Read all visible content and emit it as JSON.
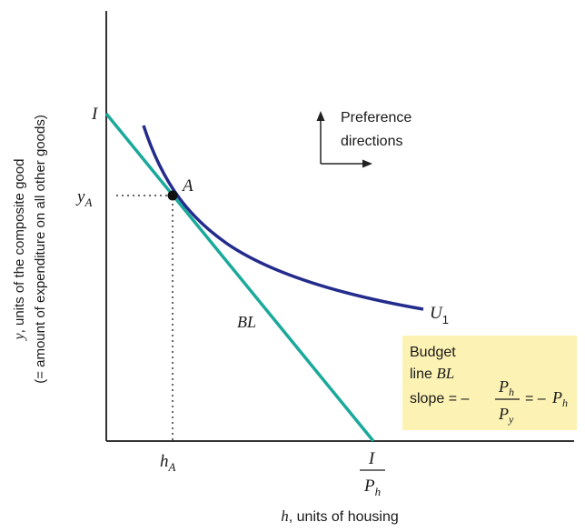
{
  "diagram": {
    "y_axis_label_line1_var": "y",
    "y_axis_label_line1_text": ", units of the composite good",
    "y_axis_label_line2": "(= amount of expenditure on all other goods)",
    "x_axis_label_var": "h",
    "x_axis_label_text": ", units of housing",
    "y_intercept_label": "I",
    "yA_var": "y",
    "yA_sub": "A",
    "hA_var": "h",
    "hA_sub": "A",
    "x_intercept_num": "I",
    "x_intercept_den_var": "P",
    "x_intercept_den_sub": "h",
    "point_label": "A",
    "curve_label_var": "U",
    "curve_label_sub": "1",
    "budget_line_label": "BL",
    "preference_line1": "Preference",
    "preference_line2": "directions",
    "box": {
      "line1": "Budget",
      "line2_text": "line ",
      "line2_var": "BL",
      "slope_text": "slope = –",
      "frac_num_var": "P",
      "frac_num_sub": "h",
      "frac_den_var": "P",
      "frac_den_sub": "y",
      "eq_text": "= –",
      "result_var": "P",
      "result_sub": "h"
    },
    "colors": {
      "budget_line": "#1aa99a",
      "indifference_curve": "#232b8c",
      "axes": "#333333",
      "box_fill": "#fcf2b4"
    }
  }
}
